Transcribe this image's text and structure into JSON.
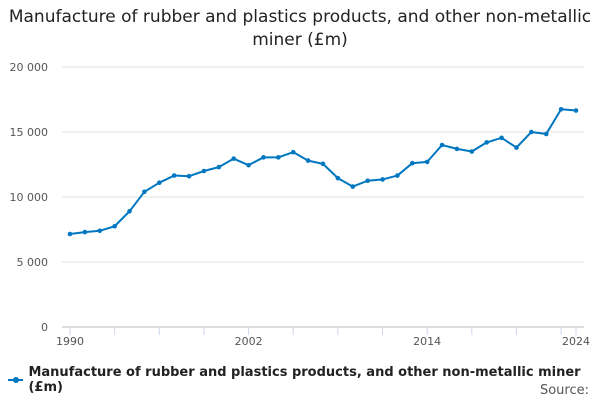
{
  "chart_data": {
    "type": "line",
    "title": "Manufacture of rubber and plastics products, and other non-metallic miner (£m)",
    "xlabel": "",
    "ylabel": "",
    "ylim": [
      0,
      20000
    ],
    "yticks": [
      0,
      5000,
      10000,
      15000,
      20000
    ],
    "ytick_labels": [
      "0",
      "5 000",
      "10 000",
      "15 000",
      "20 000"
    ],
    "xtick_labels": [
      "1990",
      "2002",
      "2014",
      "2024"
    ],
    "grid": true,
    "legend_position": "bottom",
    "x": [
      1990,
      1991,
      1992,
      1993,
      1994,
      1995,
      1996,
      1997,
      1998,
      1999,
      2000,
      2001,
      2002,
      2003,
      2004,
      2005,
      2006,
      2007,
      2008,
      2009,
      2010,
      2011,
      2012,
      2013,
      2014,
      2015,
      2016,
      2017,
      2018,
      2019,
      2020,
      2021,
      2022,
      2023,
      2024
    ],
    "series": [
      {
        "name": "Manufacture of rubber and plastics products, and other non-metallic miner (£m)",
        "color": "#0077c0",
        "values": [
          7150,
          7300,
          7400,
          7750,
          8900,
          10400,
          11100,
          11650,
          11600,
          12000,
          12300,
          12950,
          12450,
          13050,
          13050,
          13450,
          12800,
          12550,
          11450,
          10800,
          11250,
          11350,
          11650,
          12600,
          12700,
          14000,
          13700,
          13500,
          14200,
          14550,
          13800,
          15000,
          14850,
          16750,
          16650
        ]
      }
    ]
  },
  "source_label": "Source:"
}
